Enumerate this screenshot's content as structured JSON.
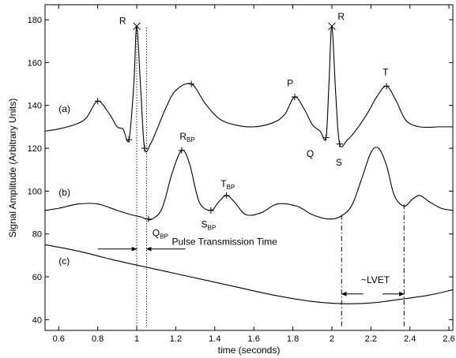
{
  "chart_data": {
    "type": "line",
    "xlabel": "time (seconds)",
    "ylabel": "Signal Amplitude (Arbitrary Units)",
    "xlim": [
      0.53,
      2.62
    ],
    "ylim": [
      35,
      187
    ],
    "xticks": [
      0.6,
      0.8,
      1,
      1.2,
      1.4,
      1.6,
      1.8,
      2,
      2.2,
      2.4,
      2.6
    ],
    "xtick_labels": [
      "0.6",
      "0.8",
      "1",
      "1.2",
      "1.4",
      "1.6",
      "1.8",
      "2",
      "2.2",
      "2.4",
      "2.6"
    ],
    "yticks": [
      40,
      60,
      80,
      100,
      120,
      140,
      160,
      180
    ],
    "ytick_labels": [
      "40",
      "60",
      "80",
      "100",
      "120",
      "140",
      "160",
      "180"
    ],
    "grid": false,
    "series": [
      {
        "label": "(a)",
        "x": [
          0.53,
          0.6,
          0.68,
          0.74,
          0.8,
          0.86,
          0.9,
          0.93,
          0.96,
          0.985,
          1.0,
          1.02,
          1.04,
          1.07,
          1.1,
          1.15,
          1.2,
          1.28,
          1.35,
          1.42,
          1.5,
          1.6,
          1.7,
          1.76,
          1.81,
          1.86,
          1.9,
          1.94,
          1.97,
          1.985,
          2.0,
          2.02,
          2.04,
          2.08,
          2.12,
          2.18,
          2.23,
          2.28,
          2.33,
          2.38,
          2.45,
          2.55,
          2.62
        ],
        "y": [
          128,
          129,
          131,
          134,
          142,
          136,
          130,
          129,
          124,
          150,
          177,
          148,
          120,
          122,
          128,
          139,
          147,
          150,
          141,
          134,
          131,
          130,
          132,
          136,
          144,
          138,
          131,
          128,
          125,
          150,
          177,
          145,
          122,
          124,
          128,
          136,
          144,
          149,
          142,
          133,
          130,
          130,
          130
        ]
      },
      {
        "label": "(b)",
        "x": [
          0.53,
          0.6,
          0.7,
          0.8,
          0.9,
          0.97,
          1.02,
          1.05,
          1.08,
          1.13,
          1.18,
          1.23,
          1.27,
          1.32,
          1.38,
          1.42,
          1.46,
          1.5,
          1.56,
          1.64,
          1.72,
          1.82,
          1.9,
          1.98,
          2.04,
          2.1,
          2.15,
          2.2,
          2.24,
          2.28,
          2.32,
          2.37,
          2.41,
          2.45,
          2.5,
          2.56,
          2.62
        ],
        "y": [
          91,
          92,
          94,
          94,
          91,
          89,
          88,
          87,
          87,
          92,
          108,
          119,
          113,
          95,
          91,
          95,
          98,
          95,
          89,
          90,
          94,
          93,
          89,
          87,
          88,
          93,
          105,
          118,
          120,
          112,
          98,
          93,
          96,
          98,
          95,
          92,
          91
        ]
      },
      {
        "label": "(c)",
        "x": [
          0.53,
          0.7,
          0.9,
          1.1,
          1.3,
          1.5,
          1.7,
          1.9,
          2.05,
          2.2,
          2.35,
          2.5,
          2.62
        ],
        "y": [
          75,
          72,
          67.5,
          63.5,
          59.5,
          55.5,
          51.5,
          48.5,
          47.5,
          47.8,
          49.5,
          51.5,
          54
        ]
      }
    ],
    "markers": [
      {
        "x": 1.0,
        "y": 177,
        "shape": "x"
      },
      {
        "x": 2.0,
        "y": 177,
        "shape": "x"
      },
      {
        "x": 0.8,
        "y": 142,
        "shape": "plus"
      },
      {
        "x": 0.96,
        "y": 124,
        "shape": "plus"
      },
      {
        "x": 1.04,
        "y": 120,
        "shape": "plus"
      },
      {
        "x": 1.28,
        "y": 150,
        "shape": "plus"
      },
      {
        "x": 1.81,
        "y": 144,
        "shape": "plus"
      },
      {
        "x": 1.97,
        "y": 125,
        "shape": "plus"
      },
      {
        "x": 2.04,
        "y": 122,
        "shape": "plus"
      },
      {
        "x": 2.28,
        "y": 149,
        "shape": "plus"
      },
      {
        "x": 1.06,
        "y": 87,
        "shape": "plus"
      },
      {
        "x": 1.23,
        "y": 119,
        "shape": "plus"
      },
      {
        "x": 1.38,
        "y": 91,
        "shape": "plus"
      },
      {
        "x": 1.46,
        "y": 98,
        "shape": "plus"
      }
    ],
    "point_labels": [
      {
        "text": "R",
        "sub": "",
        "x": 0.91,
        "y": 178
      },
      {
        "text": "R",
        "sub": "",
        "x": 2.03,
        "y": 180
      },
      {
        "text": "P",
        "sub": "",
        "x": 1.77,
        "y": 149
      },
      {
        "text": "T",
        "sub": "",
        "x": 2.26,
        "y": 154
      },
      {
        "text": "Q",
        "sub": "",
        "x": 1.87,
        "y": 116
      },
      {
        "text": "S",
        "sub": "",
        "x": 2.02,
        "y": 112
      },
      {
        "text": "R",
        "sub": "BP",
        "x": 1.22,
        "y": 124
      },
      {
        "text": "Q",
        "sub": "BP",
        "x": 1.08,
        "y": 79
      },
      {
        "text": "S",
        "sub": "BP",
        "x": 1.33,
        "y": 83
      },
      {
        "text": "T",
        "sub": "BP",
        "x": 1.43,
        "y": 102
      }
    ],
    "trace_labels": [
      {
        "text": "(a)",
        "x": 0.6,
        "y": 137
      },
      {
        "text": "(b)",
        "x": 0.6,
        "y": 98
      },
      {
        "text": "(c)",
        "x": 0.6,
        "y": 66
      }
    ],
    "vlines": [
      {
        "x": 1.0,
        "y_from": 37,
        "y_to": 177,
        "style": "dotted"
      },
      {
        "x": 1.05,
        "y_from": 37,
        "y_to": 177,
        "style": "dotted"
      },
      {
        "x": 2.05,
        "y_from": 37,
        "y_to": 89,
        "style": "dashdot"
      },
      {
        "x": 2.37,
        "y_from": 37,
        "y_to": 94,
        "style": "dashdot"
      }
    ],
    "annotations": [
      {
        "text": "Pulse Transmission Time",
        "x": 1.18,
        "y": 75
      },
      {
        "text": "~LVET",
        "x": 2.15,
        "y": 57
      }
    ],
    "arrows": [
      {
        "from_x": 0.8,
        "to_x": 1.0,
        "y": 73
      },
      {
        "from_x": 1.25,
        "to_x": 1.05,
        "y": 73
      },
      {
        "from_x": 2.16,
        "to_x": 2.05,
        "y": 52
      },
      {
        "from_x": 2.26,
        "to_x": 2.37,
        "y": 52
      }
    ]
  }
}
